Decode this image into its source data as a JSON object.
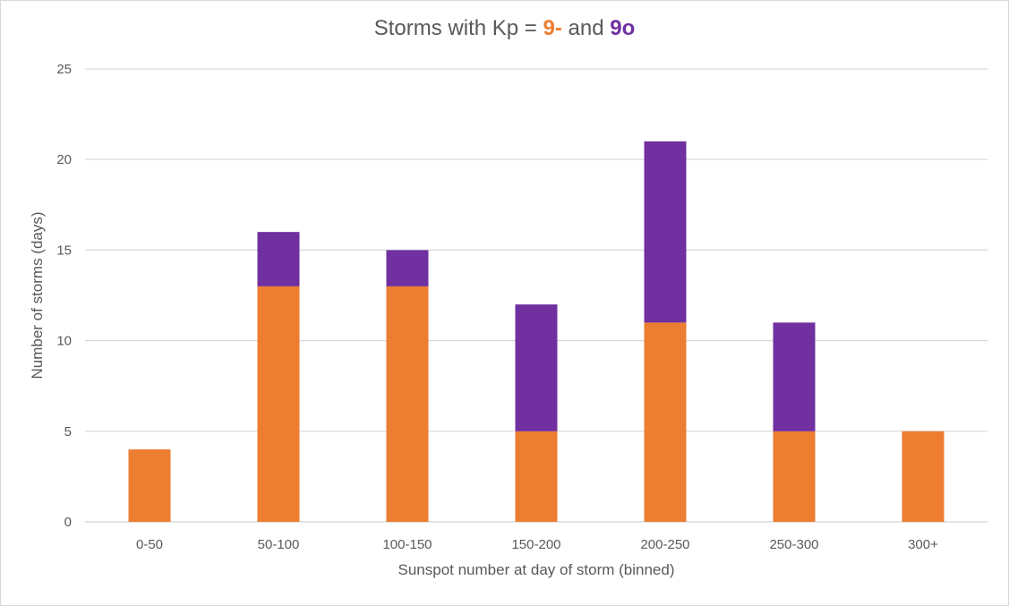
{
  "chart_data": {
    "type": "bar",
    "stacked": true,
    "title": {
      "prefix": "Storms with Kp = ",
      "part1": "9-",
      "connector": " and ",
      "part2": "9o"
    },
    "xlabel": "Sunspot number at day of storm (binned)",
    "ylabel": "Number of storms (days)",
    "categories": [
      "0-50",
      "50-100",
      "100-150",
      "150-200",
      "200-250",
      "250-300",
      "300+"
    ],
    "series": [
      {
        "values": [
          4,
          13,
          13,
          5,
          11,
          5,
          5
        ],
        "color": "#ed7d31"
      },
      {
        "values": [
          0,
          3,
          2,
          7,
          10,
          6,
          0
        ],
        "color": "#7030a0"
      }
    ],
    "ylim": [
      0,
      25
    ],
    "yticks": [
      0,
      5,
      10,
      15,
      20,
      25
    ],
    "grid": true,
    "legend": "none"
  }
}
